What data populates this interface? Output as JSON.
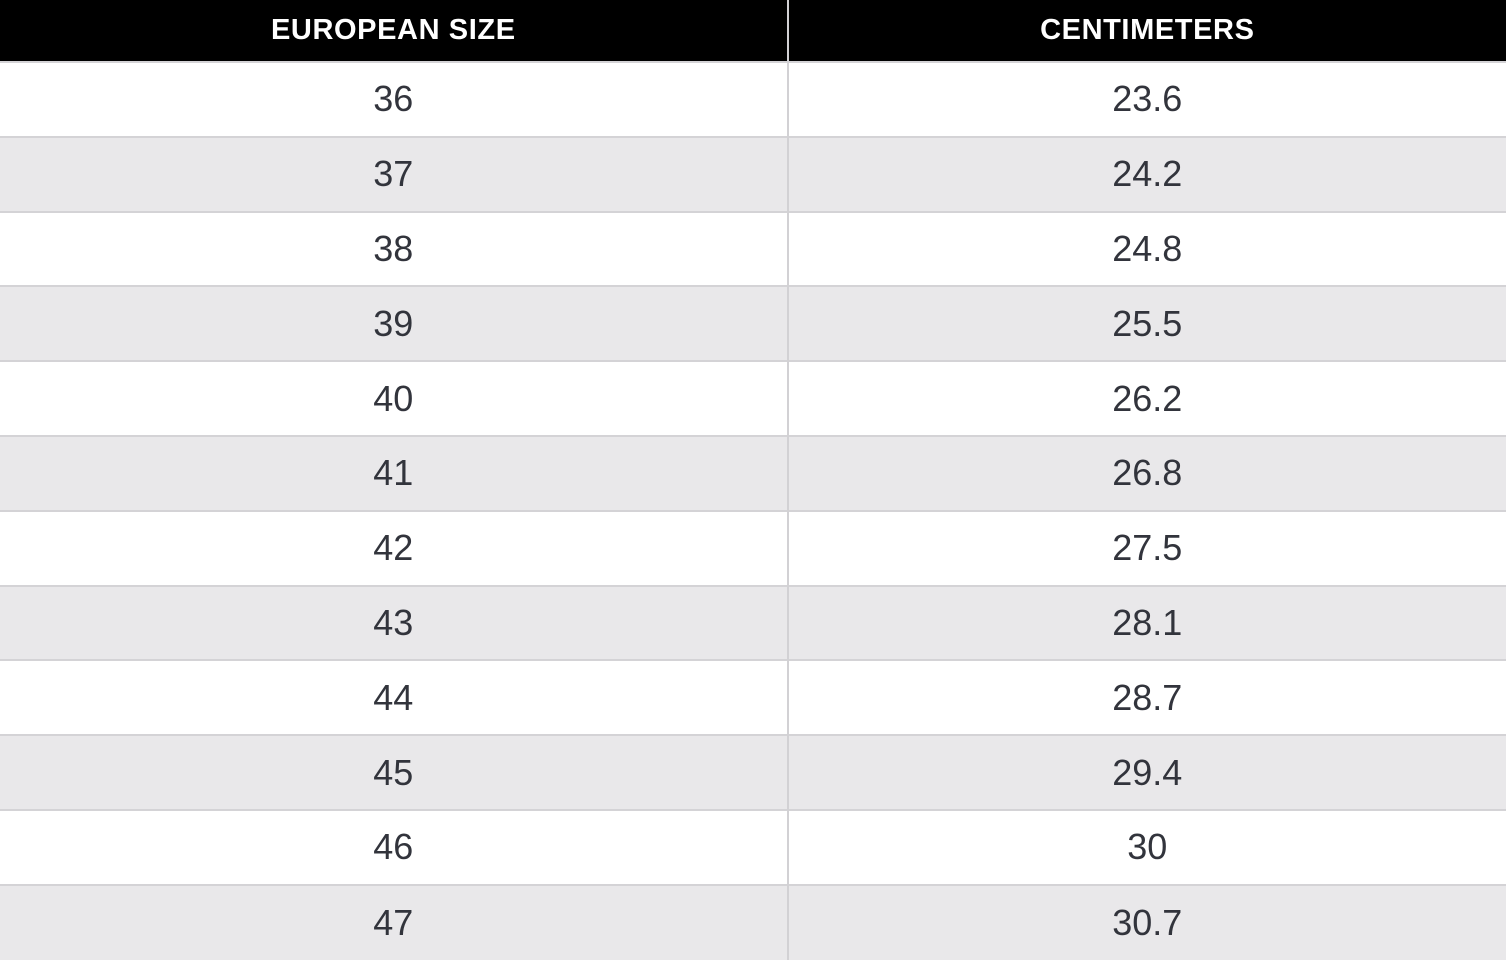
{
  "chart_data": {
    "type": "table",
    "columns": [
      "EUROPEAN SIZE",
      "CENTIMETERS"
    ],
    "rows": [
      [
        36,
        23.6
      ],
      [
        37,
        24.2
      ],
      [
        38,
        24.8
      ],
      [
        39,
        25.5
      ],
      [
        40,
        26.2
      ],
      [
        41,
        26.8
      ],
      [
        42,
        27.5
      ],
      [
        43,
        28.1
      ],
      [
        44,
        28.7
      ],
      [
        45,
        29.4
      ],
      [
        46,
        30
      ],
      [
        47,
        30.7
      ]
    ],
    "layout": {
      "header_position": "top",
      "zebra_striping": true,
      "grid": true,
      "last_row_clipped": true
    }
  },
  "colors": {
    "header_bg": "#000000",
    "header_text": "#ffffff",
    "row_bg": "#ffffff",
    "row_alt_bg": "#e9e8ea",
    "grid_border": "#d2d1d4",
    "cell_text": "#32343c"
  }
}
